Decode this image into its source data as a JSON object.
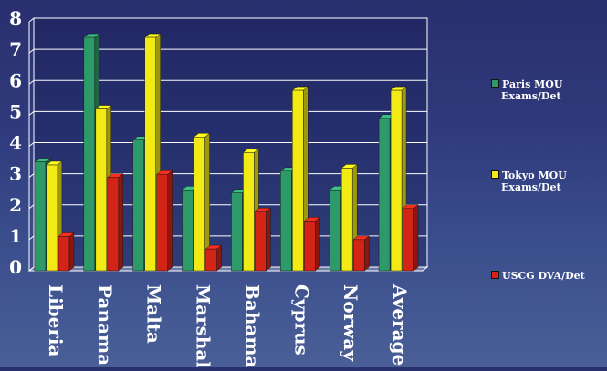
{
  "chart_data": {
    "type": "bar",
    "categories": [
      "Liberia",
      "Panama",
      "Malta",
      "Marshall",
      "Bahama",
      "Cyprus",
      "Norway",
      "Average"
    ],
    "series": [
      {
        "name": "Paris MOU Exams/Det",
        "color": "#2e9a6a",
        "values": [
          3.5,
          7.5,
          4.2,
          2.6,
          2.5,
          3.2,
          2.6,
          4.9
        ]
      },
      {
        "name": "Tokyo MOU Exams/Det",
        "color": "#f2ea14",
        "values": [
          3.4,
          5.2,
          7.5,
          4.3,
          3.8,
          5.8,
          3.3,
          5.8
        ]
      },
      {
        "name": "USCG DVA/Det",
        "color": "#d42418",
        "values": [
          1.1,
          3.0,
          3.1,
          0.7,
          1.9,
          1.6,
          1.0,
          2.0
        ]
      }
    ],
    "y_ticks": [
      "0",
      "1",
      "2",
      "3",
      "4",
      "5",
      "6",
      "7",
      "8"
    ],
    "ylim": [
      0,
      8
    ],
    "grid": true,
    "legend_position": "right"
  },
  "legend": {
    "items": [
      {
        "line1": "Paris MOU",
        "line2": "Exams/Det"
      },
      {
        "line1": "Tokyo MOU",
        "line2": "Exams/Det"
      },
      {
        "line1": "USCG DVA/Det",
        "line2": ""
      }
    ]
  }
}
